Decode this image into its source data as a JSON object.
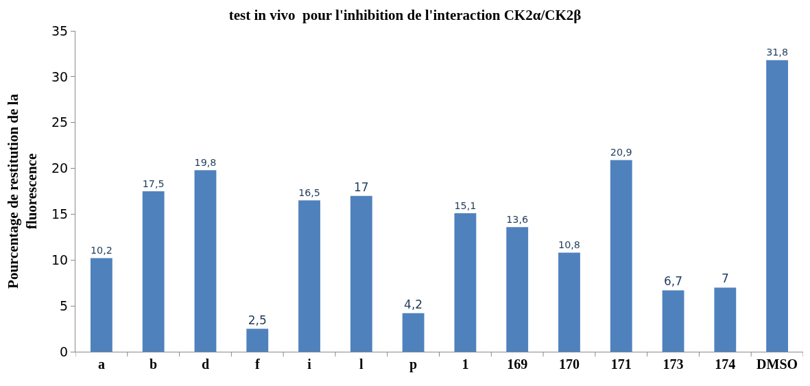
{
  "chart_data": {
    "type": "bar",
    "title": "test in vivo  pour l'inhibition de l'interaction CK2α/CK2β",
    "ylabel": "Pourcentage de restitution de la fluorescence",
    "categories": [
      "a",
      "b",
      "d",
      "f",
      "i",
      "l",
      "p",
      "1",
      "169",
      "170",
      "171",
      "173",
      "174",
      "DMSO"
    ],
    "values": [
      10.2,
      17.5,
      19.8,
      2.5,
      16.5,
      17,
      4.2,
      15.1,
      13.6,
      10.8,
      20.9,
      6.7,
      7,
      31.8
    ],
    "value_labels": [
      "10,2",
      "17,5",
      "19,8",
      "2,5",
      "16,5",
      "17",
      "4,2",
      "15,1",
      "13,6",
      "10,8",
      "20,9",
      "6,7",
      "7",
      "31,8"
    ],
    "color": "#4f81bd",
    "ylim": [
      0,
      35
    ],
    "yticks": [
      0,
      5,
      10,
      15,
      20,
      25,
      30,
      35
    ],
    "legend": false
  }
}
